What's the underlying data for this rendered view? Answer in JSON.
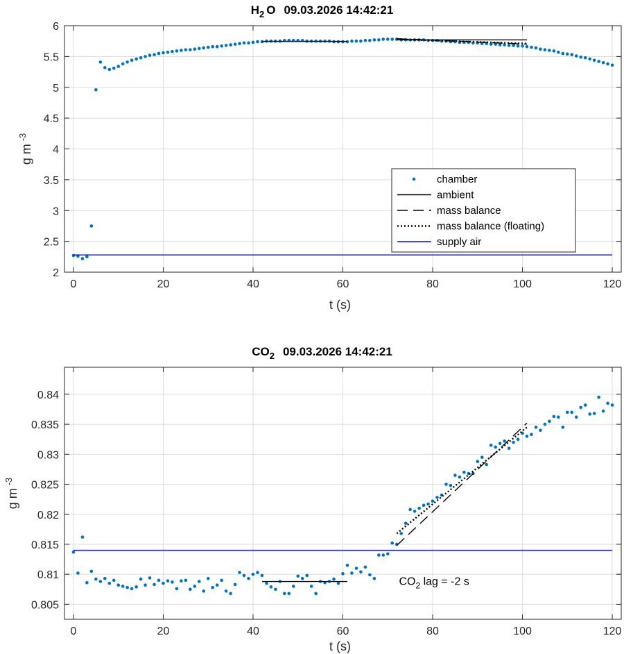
{
  "chart_data": [
    {
      "type": "scatter",
      "title": {
        "species": "H",
        "sub": "2",
        "rest": "O",
        "timestamp": "09.03.2026 14:42:21"
      },
      "xlabel": "t (s)",
      "ylabel": {
        "base": "g m",
        "sup": "-3"
      },
      "xlim": [
        -2,
        122
      ],
      "ylim": [
        2,
        6
      ],
      "xticks": [
        0,
        20,
        40,
        60,
        80,
        100,
        120
      ],
      "yticks": [
        2,
        2.5,
        3,
        3.5,
        4,
        4.5,
        5,
        5.5,
        6
      ],
      "ytick_labels": [
        "2",
        "2.5",
        "3",
        "3.5",
        "4",
        "4.5",
        "5",
        "5.5",
        "6"
      ],
      "grid": true,
      "legend": {
        "placement": "center-right",
        "entries": [
          {
            "label": "chamber",
            "style": "dots",
            "color": "#0072BD"
          },
          {
            "label": "ambient",
            "style": "solid",
            "color": "#000000"
          },
          {
            "label": "mass balance",
            "style": "dashed",
            "color": "#000000"
          },
          {
            "label": "mass balance (floating)",
            "style": "dotted",
            "color": "#000000"
          },
          {
            "label": "supply air",
            "style": "solid",
            "color": "#0000FF"
          }
        ]
      },
      "series": [
        {
          "name": "chamber",
          "color": "#0072BD",
          "x": [
            0,
            1,
            2,
            3,
            4,
            5,
            6,
            7,
            8,
            9,
            10,
            11,
            12,
            13,
            14,
            15,
            16,
            17,
            18,
            19,
            20,
            21,
            22,
            23,
            24,
            25,
            26,
            27,
            28,
            29,
            30,
            31,
            32,
            33,
            34,
            35,
            36,
            37,
            38,
            39,
            40,
            41,
            42,
            43,
            44,
            45,
            46,
            47,
            48,
            49,
            50,
            51,
            52,
            53,
            54,
            55,
            56,
            57,
            58,
            59,
            60,
            61,
            62,
            63,
            64,
            65,
            66,
            67,
            68,
            69,
            70,
            71,
            72,
            73,
            74,
            75,
            76,
            77,
            78,
            79,
            80,
            81,
            82,
            83,
            84,
            85,
            86,
            87,
            88,
            89,
            90,
            91,
            92,
            93,
            94,
            95,
            96,
            97,
            98,
            99,
            100,
            101,
            102,
            103,
            104,
            105,
            106,
            107,
            108,
            109,
            110,
            111,
            112,
            113,
            114,
            115,
            116,
            117,
            118,
            119,
            120
          ],
          "y": [
            2.27,
            2.26,
            2.22,
            2.25,
            2.75,
            4.96,
            5.41,
            5.32,
            5.29,
            5.31,
            5.34,
            5.38,
            5.41,
            5.44,
            5.46,
            5.48,
            5.5,
            5.52,
            5.53,
            5.55,
            5.56,
            5.57,
            5.58,
            5.59,
            5.6,
            5.61,
            5.61,
            5.62,
            5.63,
            5.64,
            5.65,
            5.66,
            5.66,
            5.67,
            5.68,
            5.69,
            5.7,
            5.71,
            5.72,
            5.72,
            5.73,
            5.74,
            5.74,
            5.75,
            5.75,
            5.75,
            5.75,
            5.76,
            5.76,
            5.76,
            5.76,
            5.76,
            5.75,
            5.75,
            5.75,
            5.75,
            5.75,
            5.75,
            5.74,
            5.74,
            5.74,
            5.74,
            5.75,
            5.75,
            5.75,
            5.76,
            5.76,
            5.77,
            5.77,
            5.78,
            5.78,
            5.78,
            5.78,
            5.77,
            5.77,
            5.77,
            5.77,
            5.77,
            5.77,
            5.76,
            5.76,
            5.76,
            5.75,
            5.75,
            5.74,
            5.74,
            5.73,
            5.73,
            5.73,
            5.72,
            5.72,
            5.71,
            5.71,
            5.7,
            5.7,
            5.69,
            5.69,
            5.68,
            5.68,
            5.67,
            5.67,
            5.66,
            5.65,
            5.64,
            5.62,
            5.61,
            5.6,
            5.59,
            5.57,
            5.55,
            5.54,
            5.53,
            5.51,
            5.49,
            5.48,
            5.46,
            5.44,
            5.42,
            5.4,
            5.38,
            5.36
          ]
        },
        {
          "name": "ambient",
          "segments": [
            {
              "x": [
                42,
                61
              ],
              "y": [
                5.745,
                5.745
              ]
            },
            {
              "x": [
                72,
                101
              ],
              "y": [
                5.77,
                5.77
              ]
            }
          ]
        },
        {
          "name": "mass balance",
          "x": [
            72,
            101
          ],
          "y": [
            5.79,
            5.7
          ]
        },
        {
          "name": "mass balance (floating)",
          "x": [
            72,
            101
          ],
          "y": [
            5.78,
            5.71
          ]
        },
        {
          "name": "supply air",
          "x": [
            0,
            120
          ],
          "y": [
            2.28,
            2.28
          ]
        }
      ]
    },
    {
      "type": "scatter",
      "title": {
        "species": "CO",
        "sub": "2",
        "rest": "",
        "timestamp": "09.03.2026 14:42:21"
      },
      "xlabel": "t (s)",
      "ylabel": {
        "base": "g m",
        "sup": "-3"
      },
      "xlim": [
        -2,
        122
      ],
      "ylim": [
        0.8025,
        0.8445
      ],
      "xticks": [
        0,
        20,
        40,
        60,
        80,
        100,
        120
      ],
      "yticks": [
        0.805,
        0.81,
        0.815,
        0.82,
        0.825,
        0.83,
        0.835,
        0.84
      ],
      "ytick_labels": [
        "0.805",
        "0.81",
        "0.815",
        "0.82",
        "0.825",
        "0.83",
        "0.835",
        "0.84"
      ],
      "grid": true,
      "annotation": {
        "species": "CO",
        "sub": "2",
        "text": " lag = -2 s",
        "x": 72.5,
        "y": 0.8088
      },
      "series": [
        {
          "name": "chamber",
          "color": "#0072BD",
          "x": [
            0,
            1,
            2,
            3,
            4,
            5,
            6,
            7,
            8,
            9,
            10,
            11,
            12,
            13,
            14,
            15,
            16,
            17,
            18,
            19,
            20,
            21,
            22,
            23,
            24,
            25,
            26,
            27,
            28,
            29,
            30,
            31,
            32,
            33,
            34,
            35,
            36,
            37,
            38,
            39,
            40,
            41,
            42,
            43,
            44,
            45,
            46,
            47,
            48,
            49,
            50,
            51,
            52,
            53,
            54,
            55,
            56,
            57,
            58,
            59,
            60,
            61,
            62,
            63,
            64,
            65,
            66,
            67,
            68,
            69,
            70,
            71,
            72,
            73,
            74,
            75,
            76,
            77,
            78,
            79,
            80,
            81,
            82,
            83,
            84,
            85,
            86,
            87,
            88,
            89,
            90,
            91,
            92,
            93,
            94,
            95,
            96,
            97,
            98,
            99,
            100,
            101,
            102,
            103,
            104,
            105,
            106,
            107,
            108,
            109,
            110,
            111,
            112,
            113,
            114,
            115,
            116,
            117,
            118,
            119,
            120
          ],
          "y": [
            0.8137,
            0.8102,
            0.8162,
            0.8086,
            0.8105,
            0.8092,
            0.8088,
            0.8093,
            0.8085,
            0.809,
            0.8082,
            0.808,
            0.8078,
            0.8076,
            0.8079,
            0.8092,
            0.8082,
            0.8094,
            0.8083,
            0.809,
            0.8085,
            0.8089,
            0.8087,
            0.8076,
            0.8089,
            0.809,
            0.8075,
            0.808,
            0.8088,
            0.8072,
            0.8093,
            0.8078,
            0.8082,
            0.809,
            0.8072,
            0.8068,
            0.8083,
            0.8103,
            0.8098,
            0.8093,
            0.81,
            0.8103,
            0.8098,
            0.8085,
            0.8079,
            0.8075,
            0.8088,
            0.8068,
            0.8068,
            0.808,
            0.8097,
            0.8093,
            0.8098,
            0.808,
            0.8068,
            0.8088,
            0.8086,
            0.8088,
            0.8092,
            0.8085,
            0.8101,
            0.8115,
            0.8102,
            0.811,
            0.8104,
            0.8112,
            0.8099,
            0.8093,
            0.8132,
            0.8132,
            0.8134,
            0.8152,
            0.815,
            0.8168,
            0.8185,
            0.8208,
            0.8205,
            0.821,
            0.8215,
            0.8217,
            0.8222,
            0.8228,
            0.8232,
            0.825,
            0.8248,
            0.8265,
            0.8262,
            0.827,
            0.8268,
            0.8268,
            0.8288,
            0.8295,
            0.8283,
            0.8315,
            0.8312,
            0.8318,
            0.8322,
            0.831,
            0.832,
            0.8325,
            0.8335,
            0.833,
            0.8333,
            0.8345,
            0.834,
            0.835,
            0.8355,
            0.8363,
            0.8362,
            0.8345,
            0.837,
            0.837,
            0.8362,
            0.8378,
            0.8382,
            0.8367,
            0.8368,
            0.8395,
            0.8372,
            0.8385,
            0.8382
          ]
        },
        {
          "name": "ambient",
          "x": [
            42,
            61
          ],
          "y": [
            0.8088,
            0.8088
          ]
        },
        {
          "name": "mass balance",
          "x": [
            72,
            101
          ],
          "y": [
            0.8148,
            0.8352
          ]
        },
        {
          "name": "mass balance (floating)",
          "x": [
            72,
            101
          ],
          "y": [
            0.8168,
            0.8345
          ]
        },
        {
          "name": "supply air",
          "x": [
            0,
            120
          ],
          "y": [
            0.814,
            0.814
          ]
        }
      ]
    }
  ]
}
